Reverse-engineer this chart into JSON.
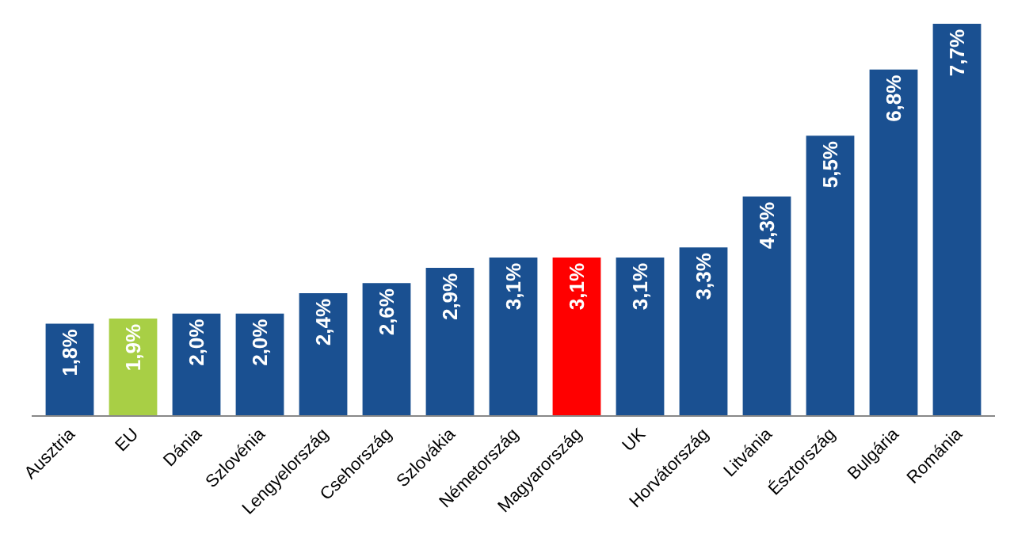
{
  "chart_data": {
    "type": "bar",
    "categories": [
      "Ausztria",
      "EU",
      "Dánia",
      "Szlovénia",
      "Lengyelország",
      "Csehország",
      "Szlovákia",
      "Németország",
      "Magyarország",
      "UK",
      "Horvátország",
      "Litvánia",
      "Észtország",
      "Bulgária",
      "Románia"
    ],
    "values": [
      1.8,
      1.9,
      2.0,
      2.0,
      2.4,
      2.6,
      2.9,
      3.1,
      3.1,
      3.1,
      3.3,
      4.3,
      5.5,
      6.8,
      7.7
    ],
    "colors": [
      "#1a5091",
      "#a8cf45",
      "#1a5091",
      "#1a5091",
      "#1a5091",
      "#1a5091",
      "#1a5091",
      "#1a5091",
      "#ff0000",
      "#1a5091",
      "#1a5091",
      "#1a5091",
      "#1a5091",
      "#1a5091",
      "#1a5091"
    ],
    "value_labels": [
      "1,8%",
      "1,9%",
      "2,0%",
      "2,0%",
      "2,4%",
      "2,6%",
      "2,9%",
      "3,1%",
      "3,1%",
      "3,1%",
      "3,3%",
      "4,3%",
      "5,5%",
      "6,8%",
      "7,7%"
    ],
    "legend": false
  }
}
